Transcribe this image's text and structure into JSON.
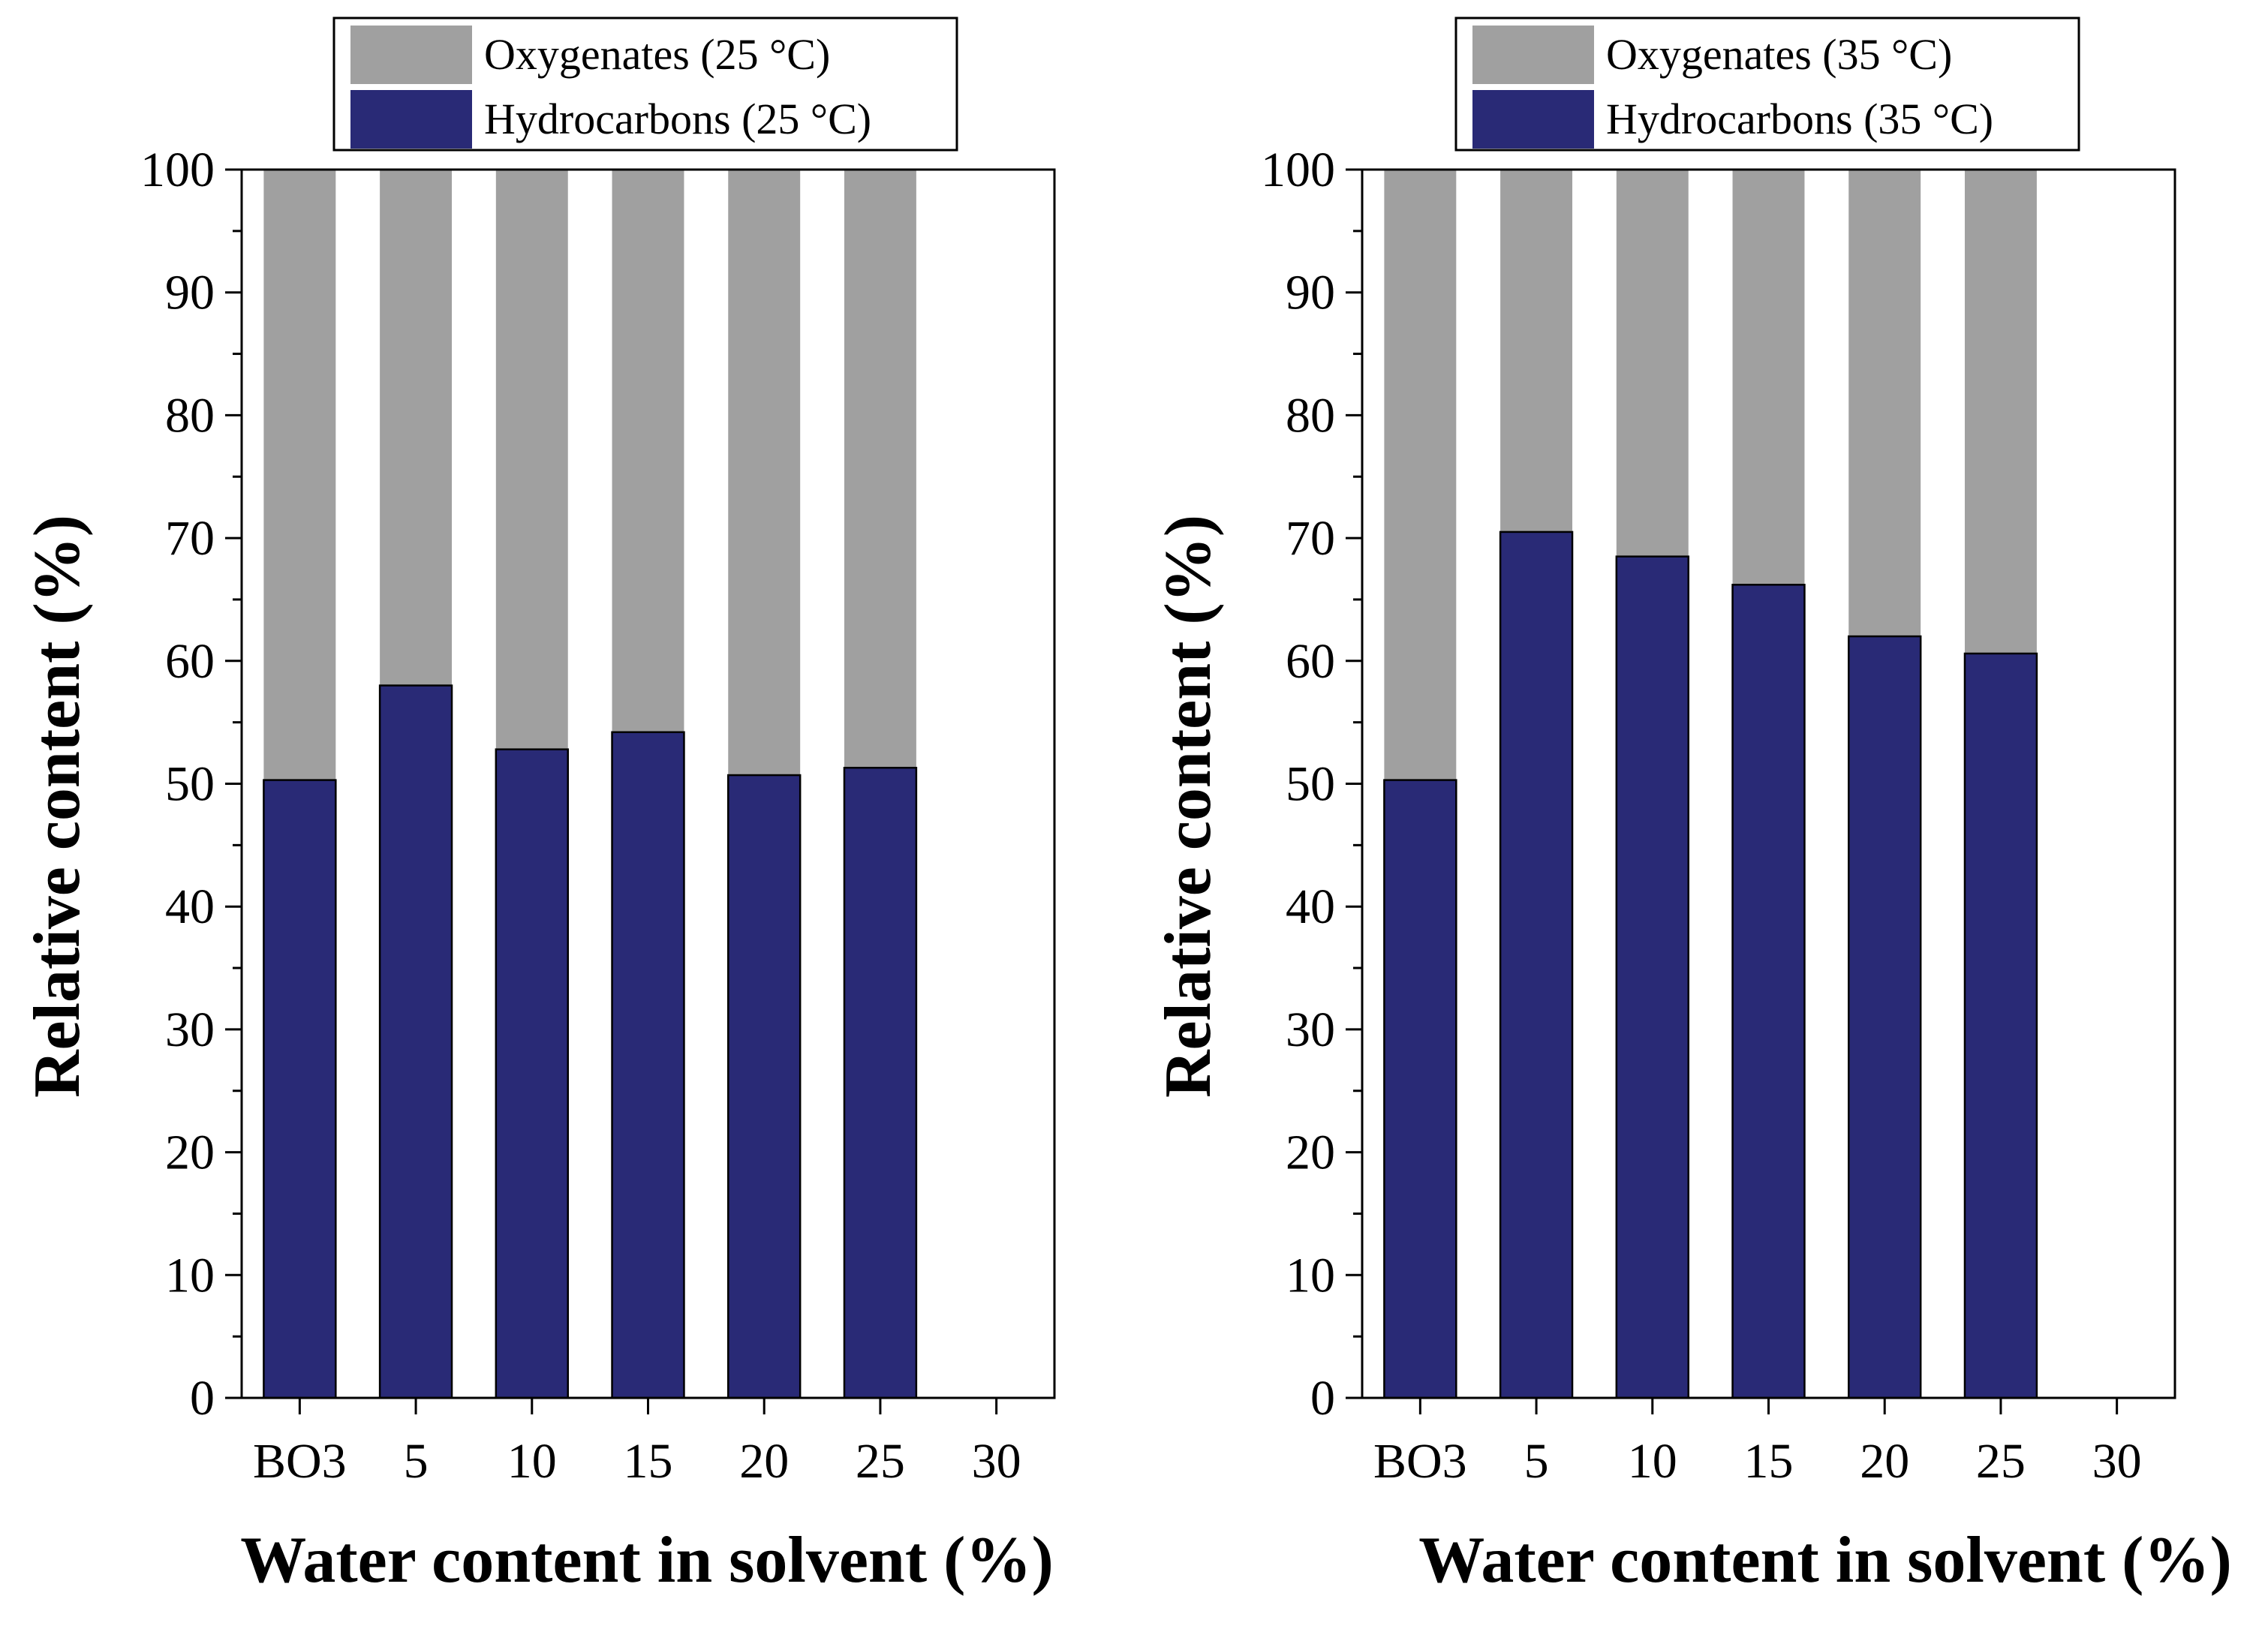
{
  "chart_data": [
    {
      "type": "bar",
      "stacked": true,
      "xlabel": "Water content in solvent (%)",
      "ylabel": "Relative content (%)",
      "ylim": [
        0,
        100
      ],
      "yticks": [
        "0",
        "10",
        "20",
        "30",
        "40",
        "50",
        "60",
        "70",
        "80",
        "90",
        "100"
      ],
      "xtick_labels": [
        "BO3",
        "5",
        "10",
        "15",
        "20",
        "25",
        "30"
      ],
      "categories": [
        "BO3",
        "5",
        "10",
        "15",
        "20",
        "25"
      ],
      "legend_position": "top",
      "series": [
        {
          "name": "Hydrocarbons (25 °C)",
          "color": "#292a76",
          "values": [
            50.3,
            58.0,
            52.8,
            54.2,
            50.7,
            51.3
          ]
        },
        {
          "name": "Oxygenates (25 °C)",
          "color": "#a0a0a0",
          "values": [
            49.7,
            42.0,
            47.2,
            45.8,
            49.3,
            48.7
          ]
        }
      ]
    },
    {
      "type": "bar",
      "stacked": true,
      "xlabel": "Water content in solvent (%)",
      "ylabel": "Relative content (%)",
      "ylim": [
        0,
        100
      ],
      "yticks": [
        "0",
        "10",
        "20",
        "30",
        "40",
        "50",
        "60",
        "70",
        "80",
        "90",
        "100"
      ],
      "xtick_labels": [
        "BO3",
        "5",
        "10",
        "15",
        "20",
        "25",
        "30"
      ],
      "categories": [
        "BO3",
        "5",
        "10",
        "15",
        "20",
        "25"
      ],
      "legend_position": "top",
      "series": [
        {
          "name": "Hydrocarbons (35 °C)",
          "color": "#292a76",
          "values": [
            50.3,
            70.5,
            68.5,
            66.2,
            62.0,
            60.6
          ]
        },
        {
          "name": "Oxygenates (35 °C)",
          "color": "#a0a0a0",
          "values": [
            49.7,
            29.5,
            31.5,
            33.8,
            38.0,
            39.4
          ]
        }
      ]
    }
  ]
}
